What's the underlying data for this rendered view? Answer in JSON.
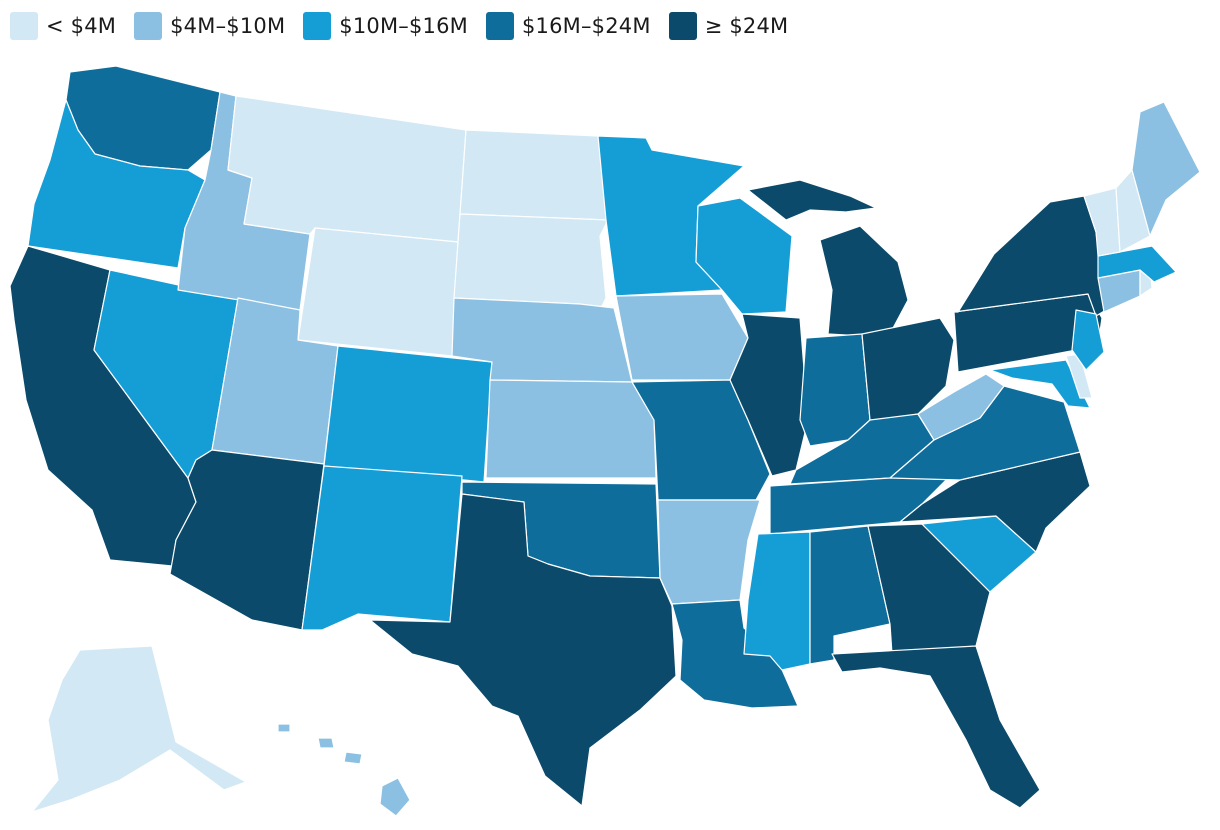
{
  "legend": {
    "items": [
      {
        "label": "< $4M",
        "color": "#d2e8f4"
      },
      {
        "label": "$4M–$10M",
        "color": "#8bc0e2"
      },
      {
        "label": "$10M–$16M",
        "color": "#159dd6"
      },
      {
        "label": "$16M–$24M",
        "color": "#0e6d9b"
      },
      {
        "label": "≥ $24M",
        "color": "#0b4a6a"
      }
    ]
  },
  "regions": [
    {
      "name": "Washington",
      "bin": 3
    },
    {
      "name": "Oregon",
      "bin": 2
    },
    {
      "name": "California",
      "bin": 4
    },
    {
      "name": "Nevada",
      "bin": 2
    },
    {
      "name": "Idaho",
      "bin": 1
    },
    {
      "name": "Montana",
      "bin": 0
    },
    {
      "name": "Wyoming",
      "bin": 0
    },
    {
      "name": "Utah",
      "bin": 1
    },
    {
      "name": "Arizona",
      "bin": 4
    },
    {
      "name": "Colorado",
      "bin": 2
    },
    {
      "name": "New Mexico",
      "bin": 2
    },
    {
      "name": "North Dakota",
      "bin": 0
    },
    {
      "name": "South Dakota",
      "bin": 0
    },
    {
      "name": "Nebraska",
      "bin": 1
    },
    {
      "name": "Kansas",
      "bin": 1
    },
    {
      "name": "Oklahoma",
      "bin": 3
    },
    {
      "name": "Texas",
      "bin": 4
    },
    {
      "name": "Minnesota",
      "bin": 2
    },
    {
      "name": "Iowa",
      "bin": 1
    },
    {
      "name": "Missouri",
      "bin": 3
    },
    {
      "name": "Arkansas",
      "bin": 1
    },
    {
      "name": "Louisiana",
      "bin": 3
    },
    {
      "name": "Wisconsin",
      "bin": 2
    },
    {
      "name": "Illinois",
      "bin": 4
    },
    {
      "name": "Michigan",
      "bin": 4
    },
    {
      "name": "Indiana",
      "bin": 3
    },
    {
      "name": "Ohio",
      "bin": 4
    },
    {
      "name": "Kentucky",
      "bin": 3
    },
    {
      "name": "Tennessee",
      "bin": 3
    },
    {
      "name": "Mississippi",
      "bin": 2
    },
    {
      "name": "Alabama",
      "bin": 3
    },
    {
      "name": "Georgia",
      "bin": 4
    },
    {
      "name": "Florida",
      "bin": 4
    },
    {
      "name": "South Carolina",
      "bin": 2
    },
    {
      "name": "North Carolina",
      "bin": 4
    },
    {
      "name": "Virginia",
      "bin": 3
    },
    {
      "name": "West Virginia",
      "bin": 1
    },
    {
      "name": "Pennsylvania",
      "bin": 4
    },
    {
      "name": "New York",
      "bin": 4
    },
    {
      "name": "Maryland",
      "bin": 2
    },
    {
      "name": "Delaware",
      "bin": 0
    },
    {
      "name": "New Jersey",
      "bin": 2
    },
    {
      "name": "Connecticut",
      "bin": 1
    },
    {
      "name": "Rhode Island",
      "bin": 0
    },
    {
      "name": "Massachusetts",
      "bin": 2
    },
    {
      "name": "Vermont",
      "bin": 0
    },
    {
      "name": "New Hampshire",
      "bin": 0
    },
    {
      "name": "Maine",
      "bin": 1
    },
    {
      "name": "Alaska",
      "bin": 0
    },
    {
      "name": "Hawaii",
      "bin": 1
    }
  ]
}
